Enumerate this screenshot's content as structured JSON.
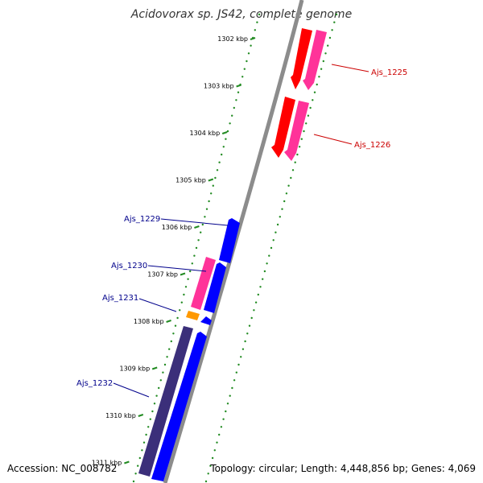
{
  "title": "Acidovorax sp. JS42, complete genome",
  "accession": "Accession: NC_008782",
  "topology": "Topology: circular; Length: 4,448,856 bp; Genes: 4,069",
  "colors": {
    "backbone": "#8c8c8c",
    "tick": "#228b22",
    "label_red": "#cc0000",
    "label_blue": "#00008b",
    "gene_red": "#ff0000",
    "gene_pink": "#ff3399",
    "gene_blue": "#0000ff",
    "gene_orange": "#ff9900",
    "gene_purple": "#3b2f7a"
  },
  "ticks": [
    "1302 kbp",
    "1303 kbp",
    "1304 kbp",
    "1305 kbp",
    "1306 kbp",
    "1307 kbp",
    "1308 kbp",
    "1309 kbp",
    "1310 kbp",
    "1311 kbp"
  ],
  "gene_labels": [
    {
      "id": "Ajs_1225",
      "color": "red"
    },
    {
      "id": "Ajs_1226",
      "color": "red"
    },
    {
      "id": "Ajs_1229",
      "color": "blue"
    },
    {
      "id": "Ajs_1230",
      "color": "blue"
    },
    {
      "id": "Ajs_1231",
      "color": "blue"
    },
    {
      "id": "Ajs_1232",
      "color": "blue"
    }
  ]
}
